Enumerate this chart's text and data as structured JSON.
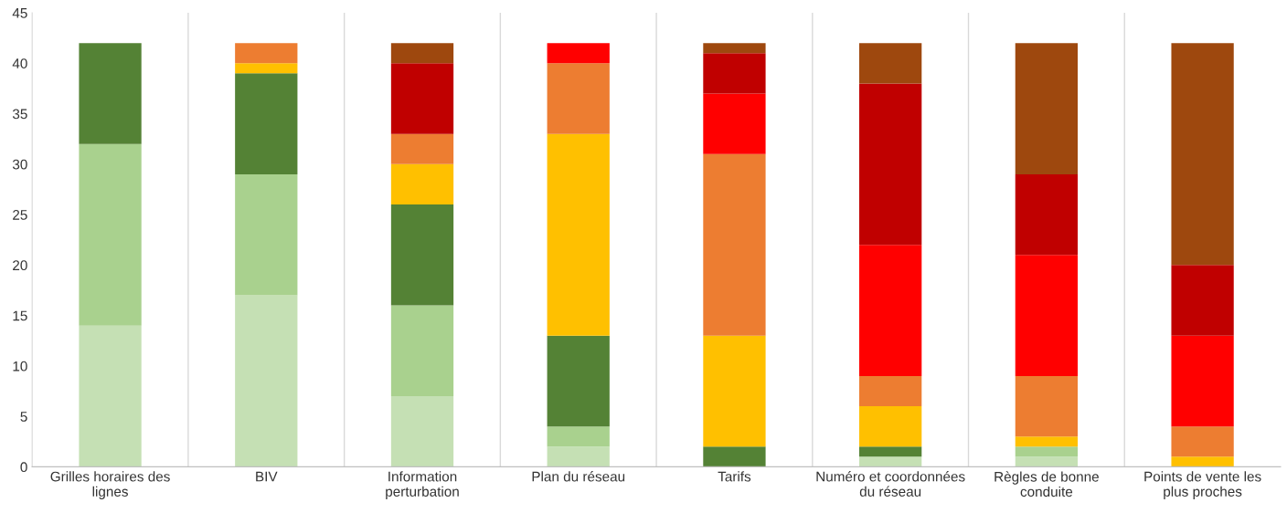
{
  "chart_data": {
    "type": "bar",
    "stacked": true,
    "categories": [
      "Grilles horaires des lignes",
      "BIV",
      "Information perturbation",
      "Plan du réseau",
      "Tarifs",
      "Numéro et coordonnées du réseau",
      "Règles de bonne conduite",
      "Points de vente les plus proches"
    ],
    "series": [
      {
        "color": "#c5e0b4",
        "values": [
          14,
          17,
          7,
          2,
          0,
          1,
          1,
          0
        ]
      },
      {
        "color": "#a9d18e",
        "values": [
          18,
          12,
          9,
          2,
          0,
          0,
          1,
          0
        ]
      },
      {
        "color": "#548235",
        "values": [
          10,
          10,
          10,
          9,
          2,
          1,
          0,
          0
        ]
      },
      {
        "color": "#ffc000",
        "values": [
          0,
          1,
          4,
          20,
          11,
          4,
          1,
          1
        ]
      },
      {
        "color": "#ed7d31",
        "values": [
          0,
          2,
          3,
          7,
          18,
          3,
          6,
          3
        ]
      },
      {
        "color": "#ff0000",
        "values": [
          0,
          0,
          0,
          2,
          6,
          13,
          12,
          9
        ]
      },
      {
        "color": "#c00000",
        "values": [
          0,
          0,
          7,
          0,
          4,
          16,
          8,
          7
        ]
      },
      {
        "color": "#9e480e",
        "values": [
          0,
          0,
          2,
          0,
          1,
          4,
          13,
          22
        ]
      }
    ],
    "ylim": [
      0,
      45
    ],
    "yticks": [
      0,
      5,
      10,
      15,
      20,
      25,
      30,
      35,
      40,
      45
    ],
    "grid": "x",
    "legend": false
  }
}
